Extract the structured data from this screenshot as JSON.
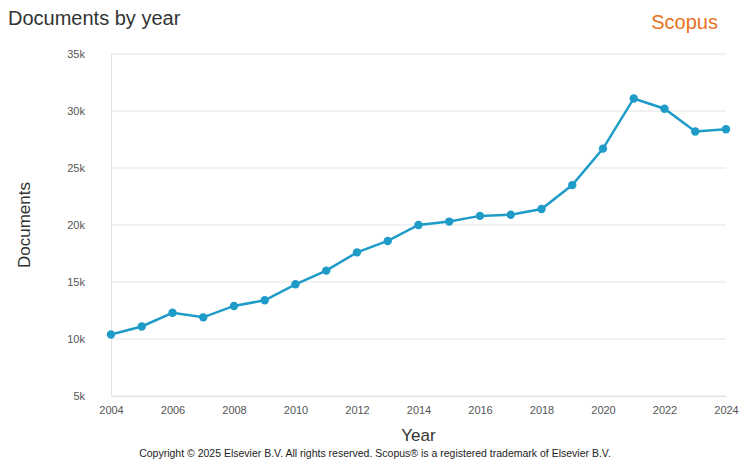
{
  "chart_data": {
    "type": "line",
    "title": "Documents by year",
    "logo": "Scopus",
    "x_label": "Year",
    "y_label": "Documents",
    "footnote": "Copyright © 2025 Elsevier B.V. All rights reserved. Scopus® is a registered trademark of Elsevier B.V.",
    "x": [
      2004,
      2005,
      2006,
      2007,
      2008,
      2009,
      2010,
      2011,
      2012,
      2013,
      2014,
      2015,
      2016,
      2017,
      2018,
      2019,
      2020,
      2021,
      2022,
      2023,
      2024
    ],
    "values": [
      10400,
      11100,
      12300,
      11900,
      12900,
      13400,
      14800,
      16000,
      17600,
      18600,
      20000,
      20300,
      20800,
      20900,
      21400,
      23500,
      26700,
      31100,
      30200,
      28200,
      28400
    ],
    "color": "#1f9bc8",
    "marker": "circle",
    "grid": true,
    "xlim": [
      2004,
      2024
    ],
    "xticks": [
      2004,
      2006,
      2008,
      2010,
      2012,
      2014,
      2016,
      2018,
      2020,
      2022,
      2024
    ],
    "ylim": [
      5000,
      35000
    ],
    "yticks": [
      {
        "value": 5000,
        "label": "5k"
      },
      {
        "value": 10000,
        "label": "10k"
      },
      {
        "value": 15000,
        "label": "15k"
      },
      {
        "value": 20000,
        "label": "20k"
      },
      {
        "value": 25000,
        "label": "25k"
      },
      {
        "value": 30000,
        "label": "30k"
      },
      {
        "value": 35000,
        "label": "35k"
      }
    ]
  }
}
